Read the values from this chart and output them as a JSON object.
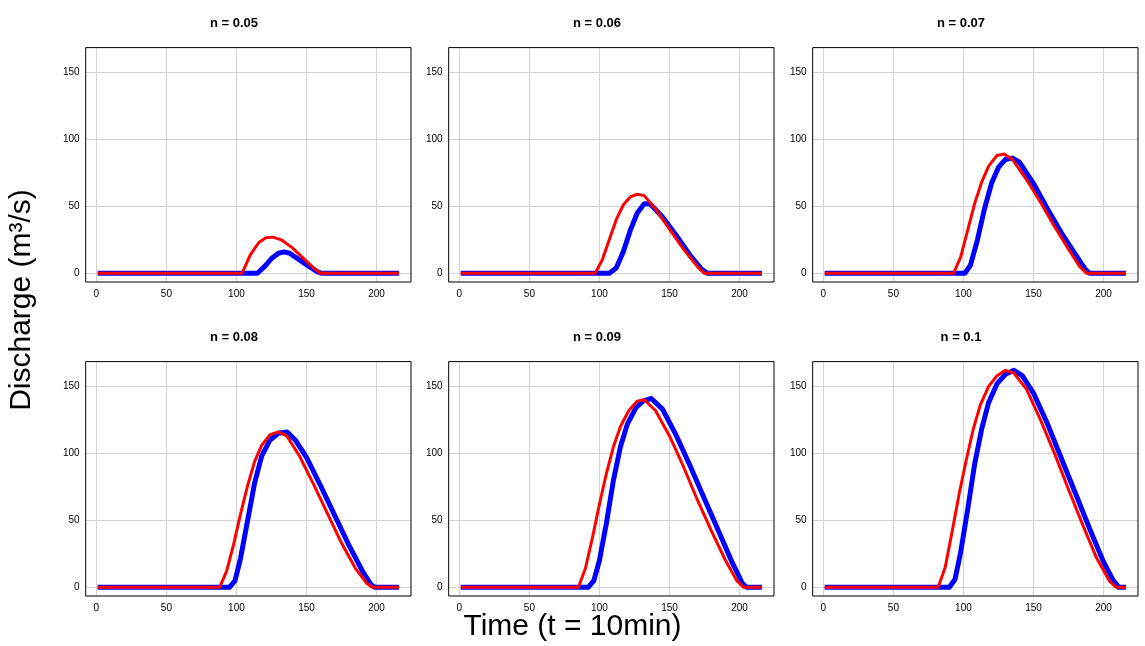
{
  "chart_data": [
    {
      "type": "line",
      "title": "n = 0.05",
      "ylabel": "Discharge (m³/s)",
      "xlim": [
        -7.6,
        224.6
      ],
      "ylim": [
        -6.5,
        168.5
      ],
      "xticks": [
        0,
        50,
        100,
        150,
        200
      ],
      "yticks": [
        0,
        50,
        100,
        150
      ],
      "grid": true,
      "marker": "none",
      "line_style": "solid",
      "series": [
        {
          "color": "#0000ff",
          "x": [
            1,
            115,
            120,
            125,
            130,
            134,
            138,
            145,
            152,
            158,
            161,
            216
          ],
          "values": [
            0,
            0,
            5,
            11,
            15,
            16,
            15,
            10,
            5,
            1,
            0,
            0
          ]
        },
        {
          "color": "#ff0000",
          "x": [
            1,
            104,
            110,
            116,
            121,
            126,
            132,
            140,
            148,
            155,
            160,
            216
          ],
          "values": [
            0,
            0,
            14,
            23,
            26.5,
            27,
            25,
            19,
            11,
            4,
            0,
            0
          ]
        }
      ]
    },
    {
      "type": "line",
      "title": "n = 0.06",
      "xlim": [
        -7.6,
        224.6
      ],
      "ylim": [
        -6.5,
        168.5
      ],
      "xticks": [
        0,
        50,
        100,
        150,
        200
      ],
      "yticks": [
        0,
        50,
        100,
        150
      ],
      "grid": true,
      "marker": "none",
      "line_style": "solid",
      "series": [
        {
          "color": "#0000ff",
          "x": [
            1,
            107,
            112,
            117,
            122,
            127,
            132,
            136,
            145,
            155,
            165,
            173,
            177,
            216
          ],
          "values": [
            0,
            0,
            4,
            16,
            32,
            45,
            52,
            52,
            42,
            28,
            13,
            3,
            0,
            0
          ]
        },
        {
          "color": "#ff0000",
          "x": [
            1,
            97,
            102,
            107,
            112,
            117,
            122,
            127,
            132,
            140,
            150,
            160,
            170,
            175,
            216
          ],
          "values": [
            0,
            0,
            10,
            25,
            40,
            51,
            57,
            59,
            58,
            48,
            33,
            18,
            5,
            0,
            0
          ]
        }
      ]
    },
    {
      "type": "line",
      "title": "n = 0.07",
      "xlim": [
        -7.6,
        224.6
      ],
      "ylim": [
        -6.5,
        168.5
      ],
      "xticks": [
        0,
        50,
        100,
        150,
        200
      ],
      "yticks": [
        0,
        50,
        100,
        150
      ],
      "grid": true,
      "marker": "none",
      "line_style": "solid",
      "series": [
        {
          "color": "#0000ff",
          "x": [
            1,
            101,
            105,
            110,
            115,
            120,
            125,
            130,
            135,
            140,
            150,
            160,
            170,
            180,
            187,
            190,
            216
          ],
          "values": [
            0,
            0,
            6,
            25,
            48,
            67,
            79,
            85,
            86,
            83,
            67,
            48,
            30,
            14,
            3,
            0,
            0
          ]
        },
        {
          "color": "#ff0000",
          "x": [
            1,
            93,
            98,
            103,
            108,
            113,
            118,
            124,
            129,
            135,
            145,
            155,
            165,
            175,
            183,
            188,
            216
          ],
          "values": [
            0,
            0,
            12,
            32,
            52,
            68,
            80,
            88,
            89,
            85,
            70,
            53,
            35,
            18,
            5,
            0,
            0
          ]
        }
      ]
    },
    {
      "type": "line",
      "title": "n = 0.08",
      "xlim": [
        -7.6,
        224.6
      ],
      "ylim": [
        -6.5,
        168.5
      ],
      "xticks": [
        0,
        50,
        100,
        150,
        200
      ],
      "yticks": [
        0,
        50,
        100,
        150
      ],
      "grid": true,
      "marker": "none",
      "line_style": "solid",
      "series": [
        {
          "color": "#0000ff",
          "x": [
            1,
            95,
            99,
            103,
            108,
            113,
            118,
            124,
            130,
            136,
            142,
            150,
            160,
            170,
            180,
            190,
            196,
            199,
            216
          ],
          "values": [
            0,
            0,
            5,
            22,
            50,
            78,
            98,
            110,
            115,
            116,
            110,
            97,
            76,
            54,
            32,
            12,
            2,
            0,
            0
          ]
        },
        {
          "color": "#ff0000",
          "x": [
            1,
            88,
            93,
            98,
            103,
            108,
            113,
            118,
            124,
            130,
            136,
            145,
            155,
            165,
            175,
            185,
            193,
            197,
            216
          ],
          "values": [
            0,
            0,
            12,
            32,
            55,
            76,
            94,
            106,
            114,
            116,
            113,
            98,
            77,
            55,
            33,
            14,
            3,
            0,
            0
          ]
        }
      ]
    },
    {
      "type": "line",
      "title": "n = 0.09",
      "xlabel": "Time (t = 10min)",
      "xlim": [
        -7.6,
        224.6
      ],
      "ylim": [
        -6.5,
        168.5
      ],
      "xticks": [
        0,
        50,
        100,
        150,
        200
      ],
      "yticks": [
        0,
        50,
        100,
        150
      ],
      "grid": true,
      "marker": "none",
      "line_style": "solid",
      "series": [
        {
          "color": "#0000ff",
          "x": [
            1,
            92,
            96,
            100,
            105,
            110,
            115,
            120,
            126,
            131,
            137,
            145,
            155,
            165,
            175,
            185,
            195,
            202,
            205,
            216
          ],
          "values": [
            0,
            0,
            5,
            20,
            48,
            80,
            105,
            122,
            134,
            139,
            141,
            133,
            113,
            90,
            66,
            42,
            18,
            3,
            0,
            0
          ]
        },
        {
          "color": "#ff0000",
          "x": [
            1,
            85,
            90,
            95,
            100,
            105,
            110,
            115,
            121,
            127,
            132,
            140,
            150,
            160,
            170,
            180,
            190,
            198,
            203,
            216
          ],
          "values": [
            0,
            0,
            14,
            37,
            62,
            85,
            105,
            120,
            132,
            139,
            140,
            132,
            113,
            90,
            65,
            42,
            20,
            5,
            0,
            0
          ]
        }
      ]
    },
    {
      "type": "line",
      "title": "n = 0.1",
      "xlim": [
        -7.6,
        224.6
      ],
      "ylim": [
        -6.5,
        168.5
      ],
      "xticks": [
        0,
        50,
        100,
        150,
        200
      ],
      "yticks": [
        0,
        50,
        100,
        150
      ],
      "grid": true,
      "marker": "none",
      "line_style": "solid",
      "series": [
        {
          "color": "#0000ff",
          "x": [
            1,
            90,
            94,
            98,
            103,
            108,
            113,
            118,
            124,
            130,
            136,
            142,
            150,
            160,
            170,
            180,
            190,
            200,
            207,
            211,
            216
          ],
          "values": [
            0,
            0,
            6,
            26,
            58,
            92,
            118,
            138,
            152,
            159,
            162,
            158,
            145,
            122,
            96,
            70,
            44,
            19,
            5,
            0,
            0
          ]
        },
        {
          "color": "#ff0000",
          "x": [
            1,
            82,
            87,
            92,
            97,
            102,
            107,
            112,
            118,
            124,
            130,
            136,
            145,
            155,
            165,
            175,
            185,
            195,
            204,
            209,
            216
          ],
          "values": [
            0,
            0,
            15,
            42,
            70,
            95,
            118,
            136,
            150,
            158,
            162,
            160,
            148,
            125,
            100,
            73,
            47,
            22,
            5,
            0,
            0
          ]
        }
      ]
    }
  ]
}
